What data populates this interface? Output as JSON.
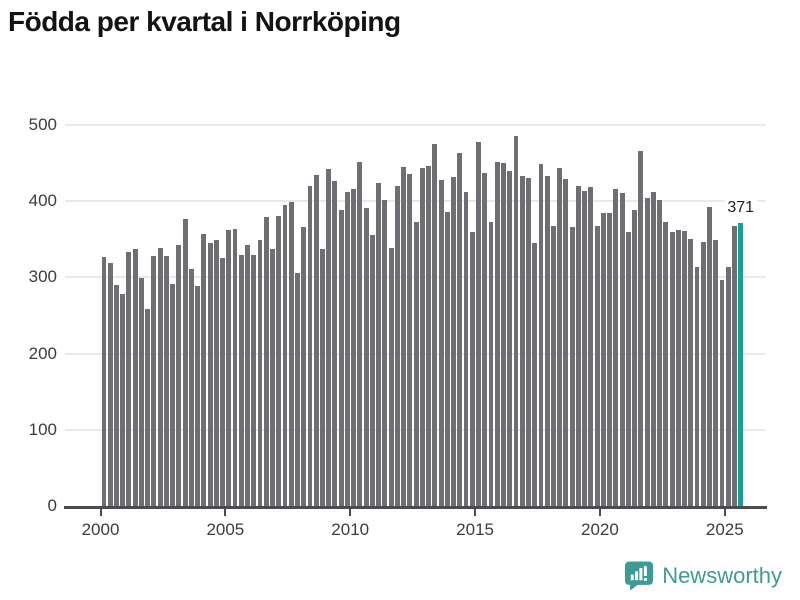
{
  "title": "Födda per kvartal i Norrköping",
  "annotation": {
    "label": "371"
  },
  "footer": {
    "brand": "Newsworthy"
  },
  "colors": {
    "bar": "#6e6e73",
    "highlight": "#1b9e9b",
    "logo": "#3c9c94",
    "grid": "#e9e9e9",
    "axis": "#4b4b50",
    "tick_text": "#3d3d3d",
    "title_text": "#131313"
  },
  "chart_data": {
    "type": "bar",
    "title": "Födda per kvartal i Norrköping",
    "xlabel": "",
    "ylabel": "",
    "ylim": [
      0,
      500
    ],
    "yticks": [
      0,
      100,
      200,
      300,
      400,
      500
    ],
    "xticks": [
      2000,
      2005,
      2010,
      2015,
      2020,
      2025
    ],
    "grid": true,
    "legend": false,
    "highlight_index": 102,
    "highlight_value": 371,
    "categories": [
      "2000Q1",
      "2000Q2",
      "2000Q3",
      "2000Q4",
      "2001Q1",
      "2001Q2",
      "2001Q3",
      "2001Q4",
      "2002Q1",
      "2002Q2",
      "2002Q3",
      "2002Q4",
      "2003Q1",
      "2003Q2",
      "2003Q3",
      "2003Q4",
      "2004Q1",
      "2004Q2",
      "2004Q3",
      "2004Q4",
      "2005Q1",
      "2005Q2",
      "2005Q3",
      "2005Q4",
      "2006Q1",
      "2006Q2",
      "2006Q3",
      "2006Q4",
      "2007Q1",
      "2007Q2",
      "2007Q3",
      "2007Q4",
      "2008Q1",
      "2008Q2",
      "2008Q3",
      "2008Q4",
      "2009Q1",
      "2009Q2",
      "2009Q3",
      "2009Q4",
      "2010Q1",
      "2010Q2",
      "2010Q3",
      "2010Q4",
      "2011Q1",
      "2011Q2",
      "2011Q3",
      "2011Q4",
      "2012Q1",
      "2012Q2",
      "2012Q3",
      "2012Q4",
      "2013Q1",
      "2013Q2",
      "2013Q3",
      "2013Q4",
      "2014Q1",
      "2014Q2",
      "2014Q3",
      "2014Q4",
      "2015Q1",
      "2015Q2",
      "2015Q3",
      "2015Q4",
      "2016Q1",
      "2016Q2",
      "2016Q3",
      "2016Q4",
      "2017Q1",
      "2017Q2",
      "2017Q3",
      "2017Q4",
      "2018Q1",
      "2018Q2",
      "2018Q3",
      "2018Q4",
      "2019Q1",
      "2019Q2",
      "2019Q3",
      "2019Q4",
      "2020Q1",
      "2020Q2",
      "2020Q3",
      "2020Q4",
      "2021Q1",
      "2021Q2",
      "2021Q3",
      "2021Q4",
      "2022Q1",
      "2022Q2",
      "2022Q3",
      "2022Q4",
      "2023Q1",
      "2023Q2",
      "2023Q3",
      "2023Q4",
      "2024Q1",
      "2024Q2",
      "2024Q3",
      "2024Q4",
      "2025Q1",
      "2025Q2",
      "2025Q3"
    ],
    "values": [
      327,
      319,
      290,
      278,
      333,
      337,
      299,
      258,
      328,
      338,
      328,
      291,
      342,
      376,
      311,
      289,
      357,
      345,
      349,
      326,
      362,
      364,
      330,
      342,
      329,
      349,
      379,
      337,
      380,
      395,
      399,
      306,
      366,
      420,
      434,
      337,
      442,
      426,
      388,
      412,
      416,
      452,
      391,
      356,
      424,
      402,
      338,
      420,
      445,
      436,
      373,
      443,
      446,
      475,
      428,
      386,
      432,
      463,
      412,
      359,
      478,
      437,
      373,
      452,
      450,
      439,
      486,
      433,
      430,
      345,
      449,
      433,
      367,
      443,
      429,
      366,
      420,
      413,
      419,
      368,
      385,
      385,
      416,
      411,
      360,
      388,
      466,
      404,
      412,
      401,
      373,
      359,
      362,
      361,
      350,
      314,
      346,
      393,
      349,
      296,
      314,
      368,
      371
    ]
  }
}
